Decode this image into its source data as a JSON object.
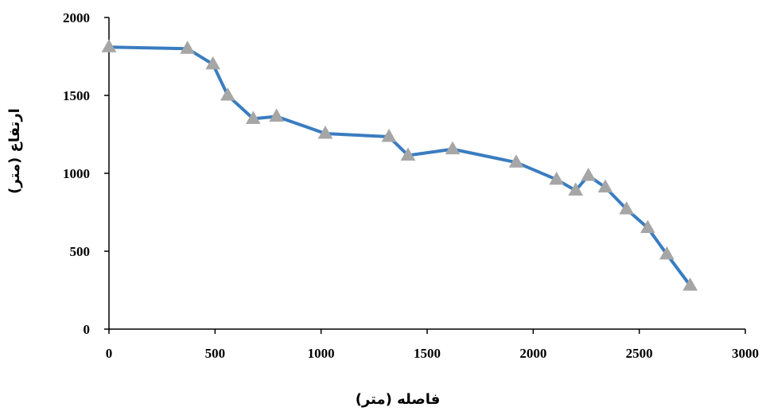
{
  "chart_data": {
    "type": "line",
    "title": "",
    "xlabel": "فاصله (متر)",
    "ylabel": "ارتفاع (متر)",
    "xlim": [
      0,
      3000
    ],
    "ylim": [
      0,
      2000
    ],
    "xticks": [
      0,
      500,
      1000,
      1500,
      2000,
      2500,
      3000
    ],
    "yticks": [
      0,
      500,
      1000,
      1500,
      2000
    ],
    "grid": false,
    "legend": "none",
    "line_color": "#3A7CC0",
    "marker_color": "#A6A6A6",
    "marker": "triangle",
    "series": [
      {
        "x": [
          0,
          370,
          490,
          560,
          680,
          790,
          1020,
          1320,
          1410,
          1620,
          1920,
          2110,
          2200,
          2260,
          2340,
          2440,
          2540,
          2630,
          2740
        ],
        "y": [
          1810,
          1800,
          1700,
          1500,
          1350,
          1365,
          1255,
          1235,
          1115,
          1155,
          1070,
          960,
          890,
          985,
          910,
          770,
          650,
          480,
          280
        ]
      }
    ]
  }
}
